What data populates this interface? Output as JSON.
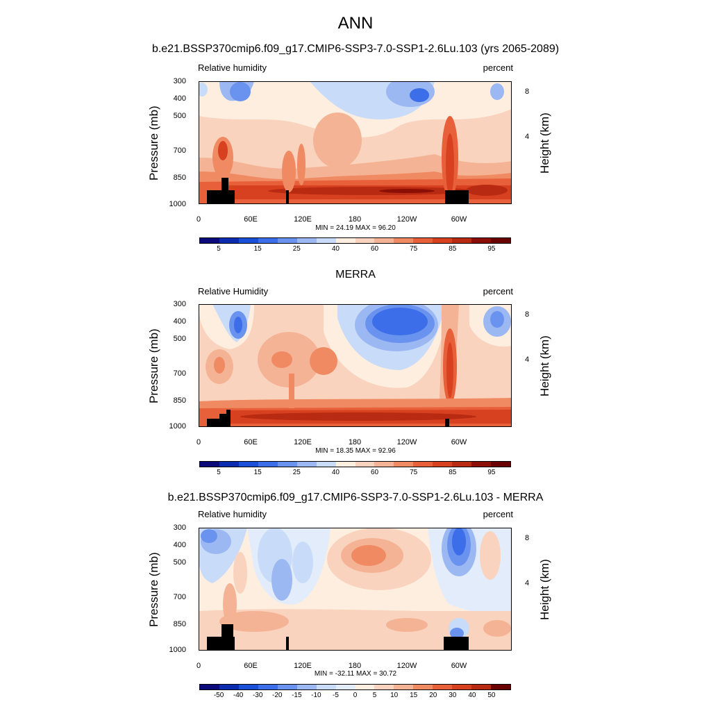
{
  "main_title": "ANN",
  "colors": {
    "abs_scale": [
      "#0a0a7a",
      "#0c2cb0",
      "#1a4fd8",
      "#3b6ee8",
      "#6a93ef",
      "#9cb8f3",
      "#c8dbf8",
      "#fdeee0",
      "#f9d3bd",
      "#f5b395",
      "#ef8a63",
      "#e8603a",
      "#d8411f",
      "#b82a12",
      "#8c0f05",
      "#6a0000"
    ],
    "diff_scale": [
      "#0a0a7a",
      "#0c2cb0",
      "#1a4fd8",
      "#3b6ee8",
      "#6a93ef",
      "#9cb8f3",
      "#c8dbf8",
      "#e3ecfb",
      "#fdeee0",
      "#f9d3bd",
      "#f5b395",
      "#ef8a63",
      "#e8603a",
      "#d8411f",
      "#b82a12",
      "#6a0000"
    ]
  },
  "panels": [
    {
      "title": "b.e21.BSSP370cmip6.f09_g17.CMIP6-SSP3-7.0-SSP1-2.6Lu.103 (yrs 2065-2089)",
      "left_label": "Relative humidity",
      "right_label": "percent",
      "ylabel": "Pressure (mb)",
      "ylabel_right": "Height (km)",
      "minmax": "MIN = 24.19  MAX = 96.20",
      "colorbar_labels": [
        "5",
        "15",
        "25",
        "40",
        "60",
        "75",
        "85",
        "95"
      ]
    },
    {
      "title": "MERRA",
      "left_label": "Relative Humidity",
      "right_label": "percent",
      "ylabel": "Pressure (mb)",
      "ylabel_right": "Height (km)",
      "minmax": "MIN = 18.35  MAX = 92.96",
      "colorbar_labels": [
        "5",
        "15",
        "25",
        "40",
        "60",
        "75",
        "85",
        "95"
      ]
    },
    {
      "title": "b.e21.BSSP370cmip6.f09_g17.CMIP6-SSP3-7.0-SSP1-2.6Lu.103 - MERRA",
      "left_label": "Relative humidity",
      "right_label": "percent",
      "ylabel": "Pressure (mb)",
      "ylabel_right": "Height (km)",
      "minmax": "MIN = -32.11  MAX = 30.72",
      "colorbar_labels": [
        "-50",
        "-40",
        "-30",
        "-20",
        "-15",
        "-10",
        "-5",
        "0",
        "5",
        "10",
        "15",
        "20",
        "30",
        "40",
        "50"
      ]
    }
  ],
  "chart_data": [
    {
      "type": "heatmap",
      "title": "b.e21.BSSP370cmip6.f09_g17.CMIP6-SSP3-7.0-SSP1-2.6Lu.103 (yrs 2065-2089)",
      "variable": "Relative humidity",
      "units": "percent",
      "x_ticks": [
        "0",
        "60E",
        "120E",
        "180",
        "120W",
        "60W"
      ],
      "y_ticks": [
        "300",
        "400",
        "500",
        "700",
        "850",
        "1000"
      ],
      "y_right_ticks": [
        "8",
        "4"
      ],
      "ylabel": "Pressure (mb)",
      "ylabel_right": "Height (km)",
      "min": 24.19,
      "max": 96.2
    },
    {
      "type": "heatmap",
      "title": "MERRA",
      "variable": "Relative Humidity",
      "units": "percent",
      "x_ticks": [
        "0",
        "60E",
        "120E",
        "180",
        "120W",
        "60W"
      ],
      "y_ticks": [
        "300",
        "400",
        "500",
        "700",
        "850",
        "1000"
      ],
      "y_right_ticks": [
        "8",
        "4"
      ],
      "ylabel": "Pressure (mb)",
      "ylabel_right": "Height (km)",
      "min": 18.35,
      "max": 92.96
    },
    {
      "type": "heatmap",
      "title": "b.e21.BSSP370cmip6.f09_g17.CMIP6-SSP3-7.0-SSP1-2.6Lu.103 - MERRA",
      "variable": "Relative humidity",
      "units": "percent",
      "x_ticks": [
        "0",
        "60E",
        "120E",
        "180",
        "120W",
        "60W"
      ],
      "y_ticks": [
        "300",
        "400",
        "500",
        "700",
        "850",
        "1000"
      ],
      "y_right_ticks": [
        "8",
        "4"
      ],
      "ylabel": "Pressure (mb)",
      "ylabel_right": "Height (km)",
      "min": -32.11,
      "max": 30.72
    }
  ]
}
